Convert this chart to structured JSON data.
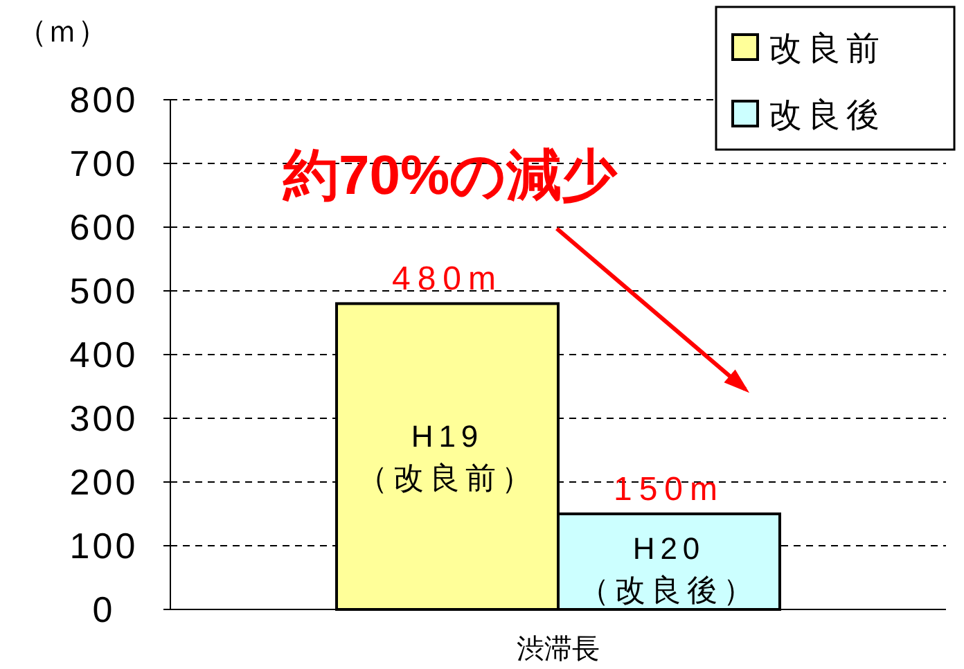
{
  "chart_data": {
    "type": "bar",
    "ylabel": "（ｍ）",
    "categories": [
      "渋滞長"
    ],
    "series": [
      {
        "name": "改良前",
        "color": "#ffff99",
        "values": [
          480
        ],
        "value_labels": [
          "480m"
        ]
      },
      {
        "name": "改良後",
        "color": "#ccffff",
        "values": [
          150
        ],
        "value_labels": [
          "150m"
        ]
      }
    ],
    "ylim": [
      0,
      800
    ],
    "yticks": [
      0,
      100,
      200,
      300,
      400,
      500,
      600,
      700,
      800
    ],
    "grid": "y",
    "legend": "top right",
    "annotations": [
      "H19\n（改良前）",
      "H20\n（改良後）",
      "約70%の減少"
    ]
  }
}
